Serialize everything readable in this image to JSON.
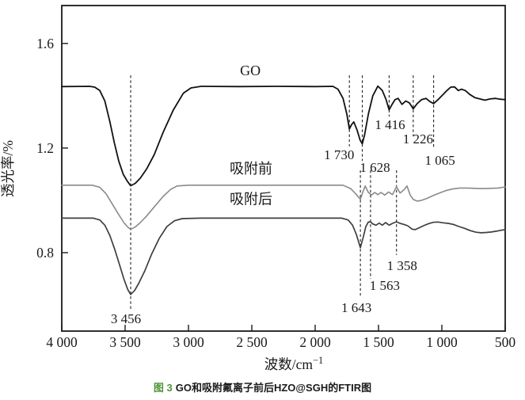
{
  "caption": {
    "figure_label": "图 3",
    "text": "GO和吸附氟离子前后HZO@SGH的FTIR图",
    "label_color": "#4f9436",
    "text_color": "#1a1a1a"
  },
  "chart_data": {
    "type": "line",
    "title": "",
    "xlabel": "波数/cm⁻¹",
    "xlabel_base": "波数/cm",
    "xlabel_sup": "−1",
    "ylabel": "透光率/%",
    "grid": false,
    "legend_position": "inline-curve-labels",
    "x_axis": {
      "min": 500,
      "max": 4000,
      "reversed": true,
      "ticks": [
        4000,
        3500,
        3000,
        2500,
        2000,
        1500,
        1000,
        500
      ],
      "tick_labels": [
        "4 000",
        "3 500",
        "3 000",
        "2 500",
        "2 000",
        "1 500",
        "1 000",
        "500"
      ]
    },
    "y_axis": {
      "min": 0.5,
      "max": 1.745,
      "ticks": [
        1.6,
        1.2,
        0.8
      ],
      "tick_labels": [
        "1.6",
        "1.2",
        "0.8"
      ]
    },
    "series": [
      {
        "name": "GO",
        "color": "#111111",
        "width": 1.8,
        "label_pos": {
          "x": 2512,
          "y": 1.497
        },
        "points": [
          [
            4000,
            1.435
          ],
          [
            3780,
            1.436
          ],
          [
            3740,
            1.433
          ],
          [
            3700,
            1.42
          ],
          [
            3660,
            1.38
          ],
          [
            3620,
            1.3
          ],
          [
            3585,
            1.22
          ],
          [
            3550,
            1.15
          ],
          [
            3515,
            1.1
          ],
          [
            3485,
            1.075
          ],
          [
            3456,
            1.056
          ],
          [
            3420,
            1.065
          ],
          [
            3380,
            1.085
          ],
          [
            3330,
            1.12
          ],
          [
            3270,
            1.175
          ],
          [
            3200,
            1.26
          ],
          [
            3120,
            1.345
          ],
          [
            3040,
            1.41
          ],
          [
            2980,
            1.43
          ],
          [
            2900,
            1.436
          ],
          [
            2600,
            1.435
          ],
          [
            2300,
            1.436
          ],
          [
            2000,
            1.435
          ],
          [
            1860,
            1.436
          ],
          [
            1820,
            1.425
          ],
          [
            1780,
            1.39
          ],
          [
            1750,
            1.33
          ],
          [
            1730,
            1.273
          ],
          [
            1712,
            1.29
          ],
          [
            1695,
            1.3
          ],
          [
            1670,
            1.27
          ],
          [
            1645,
            1.23
          ],
          [
            1628,
            1.216
          ],
          [
            1610,
            1.25
          ],
          [
            1580,
            1.33
          ],
          [
            1545,
            1.4
          ],
          [
            1505,
            1.437
          ],
          [
            1470,
            1.42
          ],
          [
            1440,
            1.385
          ],
          [
            1416,
            1.346
          ],
          [
            1395,
            1.365
          ],
          [
            1370,
            1.385
          ],
          [
            1345,
            1.39
          ],
          [
            1315,
            1.367
          ],
          [
            1285,
            1.38
          ],
          [
            1255,
            1.372
          ],
          [
            1226,
            1.35
          ],
          [
            1195,
            1.37
          ],
          [
            1160,
            1.385
          ],
          [
            1125,
            1.39
          ],
          [
            1095,
            1.378
          ],
          [
            1065,
            1.37
          ],
          [
            1030,
            1.385
          ],
          [
            1000,
            1.4
          ],
          [
            960,
            1.42
          ],
          [
            930,
            1.433
          ],
          [
            900,
            1.434
          ],
          [
            870,
            1.42
          ],
          [
            845,
            1.425
          ],
          [
            815,
            1.42
          ],
          [
            780,
            1.405
          ],
          [
            740,
            1.393
          ],
          [
            700,
            1.388
          ],
          [
            660,
            1.383
          ],
          [
            620,
            1.388
          ],
          [
            575,
            1.39
          ],
          [
            540,
            1.387
          ],
          [
            500,
            1.385
          ]
        ]
      },
      {
        "name": "吸附前",
        "color": "#8a8a8a",
        "width": 1.6,
        "label_pos": {
          "x": 2506,
          "y": 1.121
        },
        "points": [
          [
            4000,
            1.058
          ],
          [
            3760,
            1.058
          ],
          [
            3700,
            1.05
          ],
          [
            3650,
            1.025
          ],
          [
            3600,
            0.985
          ],
          [
            3550,
            0.945
          ],
          [
            3510,
            0.915
          ],
          [
            3480,
            0.898
          ],
          [
            3456,
            0.889
          ],
          [
            3420,
            0.898
          ],
          [
            3380,
            0.915
          ],
          [
            3330,
            0.94
          ],
          [
            3270,
            0.975
          ],
          [
            3200,
            1.015
          ],
          [
            3140,
            1.042
          ],
          [
            3090,
            1.055
          ],
          [
            3000,
            1.058
          ],
          [
            2500,
            1.058
          ],
          [
            2000,
            1.058
          ],
          [
            1780,
            1.058
          ],
          [
            1720,
            1.045
          ],
          [
            1680,
            1.025
          ],
          [
            1643,
            1.004
          ],
          [
            1625,
            1.03
          ],
          [
            1605,
            1.055
          ],
          [
            1580,
            1.03
          ],
          [
            1555,
            1.02
          ],
          [
            1530,
            1.03
          ],
          [
            1505,
            1.022
          ],
          [
            1480,
            1.03
          ],
          [
            1450,
            1.02
          ],
          [
            1420,
            1.032
          ],
          [
            1390,
            1.022
          ],
          [
            1358,
            1.052
          ],
          [
            1330,
            1.028
          ],
          [
            1300,
            1.04
          ],
          [
            1275,
            1.055
          ],
          [
            1250,
            1.02
          ],
          [
            1225,
            1.003
          ],
          [
            1195,
            0.997
          ],
          [
            1160,
            1.0
          ],
          [
            1120,
            1.007
          ],
          [
            1070,
            1.018
          ],
          [
            1020,
            1.028
          ],
          [
            970,
            1.037
          ],
          [
            920,
            1.043
          ],
          [
            860,
            1.047
          ],
          [
            800,
            1.047
          ],
          [
            740,
            1.046
          ],
          [
            680,
            1.045
          ],
          [
            620,
            1.046
          ],
          [
            560,
            1.047
          ],
          [
            500,
            1.051
          ]
        ]
      },
      {
        "name": "吸附后",
        "color": "#3f3f3f",
        "width": 1.7,
        "label_pos": {
          "x": 2506,
          "y": 1.004
        },
        "points": [
          [
            4000,
            0.932
          ],
          [
            3750,
            0.932
          ],
          [
            3700,
            0.925
          ],
          [
            3660,
            0.905
          ],
          [
            3620,
            0.865
          ],
          [
            3580,
            0.81
          ],
          [
            3545,
            0.755
          ],
          [
            3510,
            0.7
          ],
          [
            3480,
            0.66
          ],
          [
            3456,
            0.64
          ],
          [
            3425,
            0.655
          ],
          [
            3390,
            0.685
          ],
          [
            3345,
            0.73
          ],
          [
            3290,
            0.795
          ],
          [
            3230,
            0.855
          ],
          [
            3170,
            0.9
          ],
          [
            3110,
            0.922
          ],
          [
            3050,
            0.93
          ],
          [
            2900,
            0.932
          ],
          [
            2500,
            0.932
          ],
          [
            2000,
            0.932
          ],
          [
            1790,
            0.932
          ],
          [
            1740,
            0.925
          ],
          [
            1705,
            0.905
          ],
          [
            1675,
            0.87
          ],
          [
            1643,
            0.819
          ],
          [
            1620,
            0.86
          ],
          [
            1600,
            0.9
          ],
          [
            1580,
            0.917
          ],
          [
            1563,
            0.918
          ],
          [
            1545,
            0.91
          ],
          [
            1520,
            0.905
          ],
          [
            1495,
            0.913
          ],
          [
            1470,
            0.905
          ],
          [
            1445,
            0.915
          ],
          [
            1415,
            0.905
          ],
          [
            1390,
            0.912
          ],
          [
            1358,
            0.918
          ],
          [
            1330,
            0.912
          ],
          [
            1300,
            0.908
          ],
          [
            1270,
            0.903
          ],
          [
            1235,
            0.89
          ],
          [
            1210,
            0.888
          ],
          [
            1180,
            0.895
          ],
          [
            1145,
            0.903
          ],
          [
            1110,
            0.91
          ],
          [
            1070,
            0.916
          ],
          [
            1030,
            0.917
          ],
          [
            990,
            0.914
          ],
          [
            950,
            0.912
          ],
          [
            910,
            0.908
          ],
          [
            865,
            0.9
          ],
          [
            820,
            0.893
          ],
          [
            775,
            0.884
          ],
          [
            730,
            0.878
          ],
          [
            690,
            0.876
          ],
          [
            650,
            0.877
          ],
          [
            610,
            0.879
          ],
          [
            570,
            0.882
          ],
          [
            530,
            0.886
          ],
          [
            500,
            0.888
          ]
        ]
      }
    ],
    "annotations": [
      {
        "label": "3 456",
        "wavenumber": 3456,
        "line_top": 1.478,
        "line_bottom": 0.579,
        "label_y": 0.548,
        "label_dx": -6
      },
      {
        "label": "1 730",
        "wavenumber": 1730,
        "line_top": 1.478,
        "line_bottom": 1.206,
        "label_y": 1.175,
        "label_dx": -13
      },
      {
        "label": "1 628",
        "wavenumber": 1628,
        "line_top": 1.478,
        "line_bottom": 1.151,
        "label_y": 1.127,
        "label_dx": 16
      },
      {
        "label": "1 416",
        "wavenumber": 1416,
        "line_top": 1.478,
        "line_bottom": 1.321,
        "label_y": 1.291,
        "label_dx": 1
      },
      {
        "label": "1 226",
        "wavenumber": 1226,
        "line_top": 1.478,
        "line_bottom": 1.245,
        "label_y": 1.236,
        "label_dx": 6
      },
      {
        "label": "1 065",
        "wavenumber": 1065,
        "line_top": 1.478,
        "line_bottom": 1.2,
        "label_y": 1.154,
        "label_dx": 8
      },
      {
        "label": "1 643",
        "wavenumber": 1643,
        "line_top": 1.115,
        "line_bottom": 0.636,
        "label_y": 0.591,
        "label_dx": -5
      },
      {
        "label": "1 563",
        "wavenumber": 1563,
        "line_top": 1.115,
        "line_bottom": 0.7,
        "label_y": 0.676,
        "label_dx": 18
      },
      {
        "label": "1 358",
        "wavenumber": 1358,
        "line_top": 1.115,
        "line_bottom": 0.791,
        "label_y": 0.751,
        "label_dx": 7
      }
    ],
    "style": {
      "frame_color": "#1a1a1a",
      "dash_color": "#222222"
    }
  }
}
